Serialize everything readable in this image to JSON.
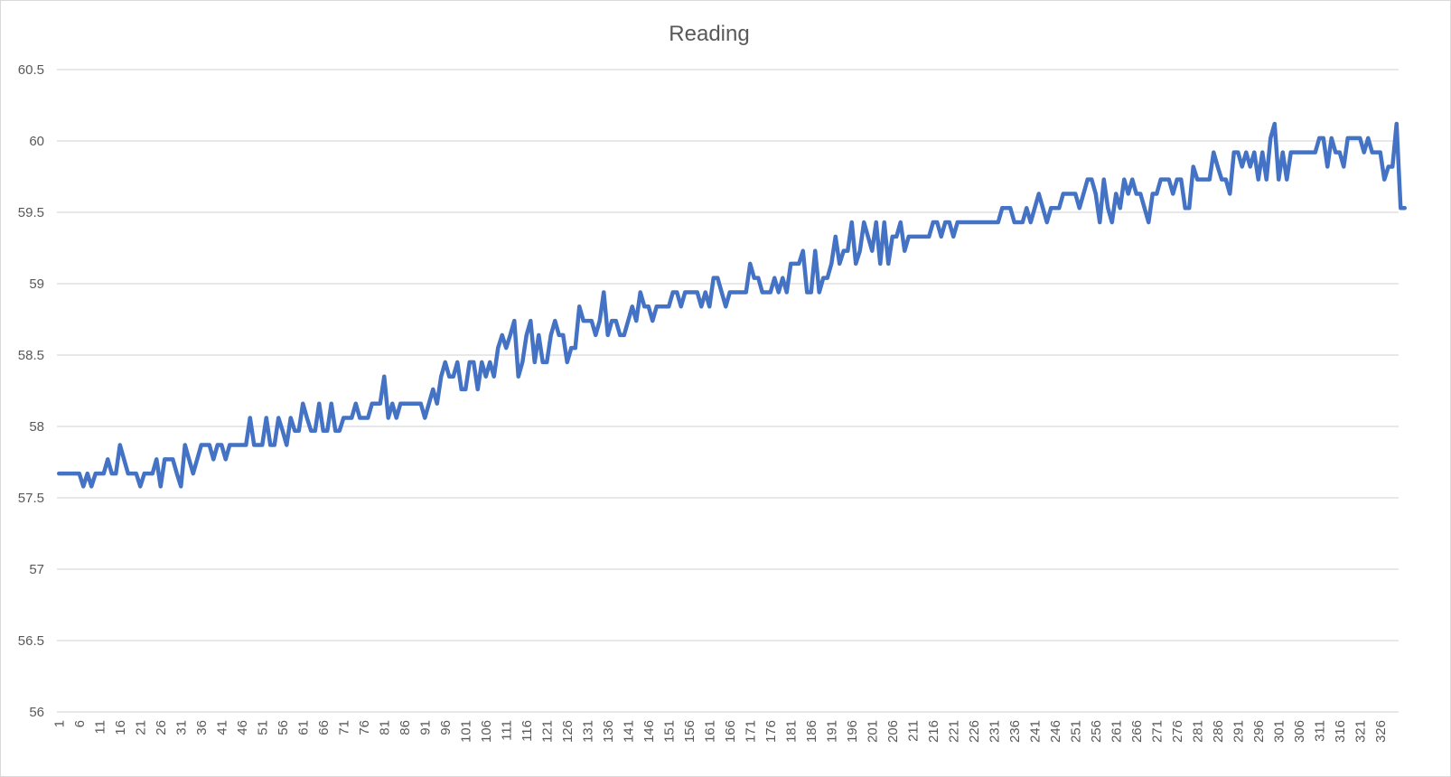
{
  "chart_data": {
    "type": "line",
    "title": "Reading",
    "xlabel": "",
    "ylabel": "",
    "ylim": [
      56,
      60.5
    ],
    "y_ticks": [
      "56",
      "56.5",
      "57",
      "57.5",
      "58",
      "58.5",
      "59",
      "59.5",
      "60",
      "60.5"
    ],
    "x_count": 330,
    "x_tick_step": 5,
    "legend": "none",
    "grid": "horizontal",
    "series": [
      {
        "color": "#4472c4",
        "values": [
          57.67,
          57.67,
          57.67,
          57.67,
          57.67,
          57.67,
          57.58,
          57.67,
          57.58,
          57.67,
          57.67,
          57.67,
          57.77,
          57.67,
          57.67,
          57.87,
          57.77,
          57.67,
          57.67,
          57.67,
          57.58,
          57.67,
          57.67,
          57.67,
          57.77,
          57.58,
          57.77,
          57.77,
          57.77,
          57.67,
          57.58,
          57.87,
          57.77,
          57.67,
          57.77,
          57.87,
          57.87,
          57.87,
          57.77,
          57.87,
          57.87,
          57.77,
          57.87,
          57.87,
          57.87,
          57.87,
          57.87,
          58.06,
          57.87,
          57.87,
          57.87,
          58.06,
          57.87,
          57.87,
          58.06,
          57.97,
          57.87,
          58.06,
          57.97,
          57.97,
          58.16,
          58.06,
          57.97,
          57.97,
          58.16,
          57.97,
          57.97,
          58.16,
          57.97,
          57.97,
          58.06,
          58.06,
          58.06,
          58.16,
          58.06,
          58.06,
          58.06,
          58.16,
          58.16,
          58.16,
          58.35,
          58.06,
          58.16,
          58.06,
          58.16,
          58.16,
          58.16,
          58.16,
          58.16,
          58.16,
          58.06,
          58.16,
          58.26,
          58.16,
          58.35,
          58.45,
          58.35,
          58.35,
          58.45,
          58.26,
          58.26,
          58.45,
          58.45,
          58.26,
          58.45,
          58.35,
          58.45,
          58.35,
          58.55,
          58.64,
          58.55,
          58.64,
          58.74,
          58.35,
          58.45,
          58.64,
          58.74,
          58.45,
          58.64,
          58.45,
          58.45,
          58.64,
          58.74,
          58.64,
          58.64,
          58.45,
          58.55,
          58.55,
          58.84,
          58.74,
          58.74,
          58.74,
          58.64,
          58.74,
          58.94,
          58.64,
          58.74,
          58.74,
          58.64,
          58.64,
          58.74,
          58.84,
          58.74,
          58.94,
          58.84,
          58.84,
          58.74,
          58.84,
          58.84,
          58.84,
          58.84,
          58.94,
          58.94,
          58.84,
          58.94,
          58.94,
          58.94,
          58.94,
          58.84,
          58.94,
          58.84,
          59.04,
          59.04,
          58.94,
          58.84,
          58.94,
          58.94,
          58.94,
          58.94,
          58.94,
          59.14,
          59.04,
          59.04,
          58.94,
          58.94,
          58.94,
          59.04,
          58.94,
          59.04,
          58.94,
          59.14,
          59.14,
          59.14,
          59.23,
          58.94,
          58.94,
          59.23,
          58.94,
          59.04,
          59.04,
          59.14,
          59.33,
          59.14,
          59.23,
          59.23,
          59.43,
          59.14,
          59.23,
          59.43,
          59.33,
          59.23,
          59.43,
          59.14,
          59.43,
          59.14,
          59.33,
          59.33,
          59.43,
          59.23,
          59.33,
          59.33,
          59.33,
          59.33,
          59.33,
          59.33,
          59.43,
          59.43,
          59.33,
          59.43,
          59.43,
          59.33,
          59.43,
          59.43,
          59.43,
          59.43,
          59.43,
          59.43,
          59.43,
          59.43,
          59.43,
          59.43,
          59.43,
          59.53,
          59.53,
          59.53,
          59.43,
          59.43,
          59.43,
          59.53,
          59.43,
          59.53,
          59.63,
          59.53,
          59.43,
          59.53,
          59.53,
          59.53,
          59.63,
          59.63,
          59.63,
          59.63,
          59.53,
          59.63,
          59.73,
          59.73,
          59.63,
          59.43,
          59.73,
          59.53,
          59.43,
          59.63,
          59.53,
          59.73,
          59.63,
          59.73,
          59.63,
          59.63,
          59.53,
          59.43,
          59.63,
          59.63,
          59.73,
          59.73,
          59.73,
          59.63,
          59.73,
          59.73,
          59.53,
          59.53,
          59.82,
          59.73,
          59.73,
          59.73,
          59.73,
          59.92,
          59.82,
          59.73,
          59.73,
          59.63,
          59.92,
          59.92,
          59.82,
          59.92,
          59.82,
          59.92,
          59.73,
          59.92,
          59.73,
          60.02,
          60.12,
          59.73,
          59.92,
          59.73,
          59.92,
          59.92,
          59.92,
          59.92,
          59.92,
          59.92,
          59.92,
          60.02,
          60.02,
          59.82,
          60.02,
          59.92,
          59.92,
          59.82,
          60.02,
          60.02,
          60.02,
          60.02,
          59.92,
          60.02,
          59.92,
          59.92,
          59.92,
          59.73,
          59.82,
          59.82,
          60.12,
          59.53,
          59.53
        ]
      }
    ]
  }
}
